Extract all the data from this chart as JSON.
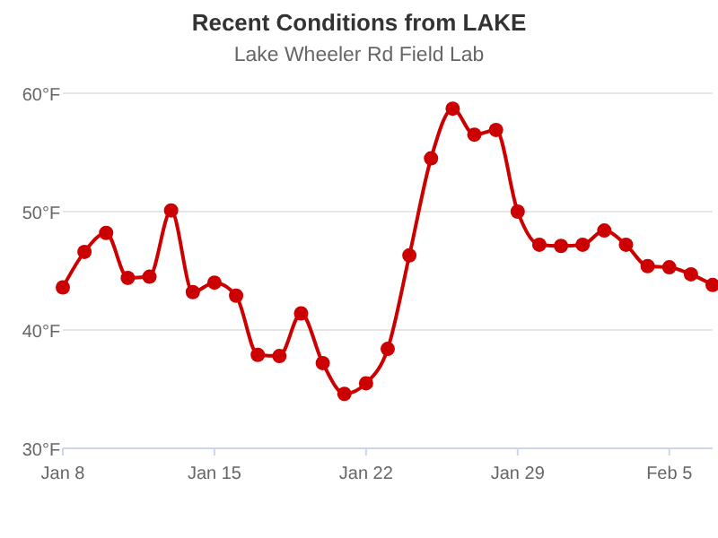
{
  "chart_data": {
    "type": "line",
    "title": "Recent Conditions from LAKE",
    "subtitle": "Lake Wheeler Rd Field Lab",
    "x": [
      "--01-08",
      "--01-09",
      "--01-10",
      "--01-11",
      "--01-12",
      "--01-13",
      "--01-14",
      "--01-15",
      "--01-16",
      "--01-17",
      "--01-18",
      "--01-19",
      "--01-20",
      "--01-21",
      "--01-22",
      "--01-23",
      "--01-24",
      "--01-25",
      "--01-26",
      "--01-27",
      "--01-28",
      "--01-29",
      "--01-30",
      "--01-31",
      "--02-01",
      "--02-02",
      "--02-03",
      "--02-04",
      "--02-05",
      "--02-06",
      "--02-07"
    ],
    "series": [
      {
        "color": "#cc0000",
        "values": [
          43.6,
          46.6,
          48.2,
          44.4,
          44.5,
          50.1,
          43.2,
          44.0,
          42.9,
          37.9,
          37.8,
          41.4,
          37.2,
          34.6,
          35.5,
          38.4,
          46.3,
          54.5,
          58.7,
          56.5,
          56.9,
          50.0,
          47.2,
          47.1,
          47.2,
          48.4,
          47.2,
          45.4,
          45.3,
          44.7,
          43.8
        ]
      }
    ],
    "xlim": [
      "--01-08",
      "--02-07"
    ],
    "xticks": [
      {
        "value": "--01-08",
        "label": "Jan 8"
      },
      {
        "value": "--01-15",
        "label": "Jan 15"
      },
      {
        "value": "--01-22",
        "label": "Jan 22"
      },
      {
        "value": "--01-29",
        "label": "Jan 29"
      },
      {
        "value": "--02-05",
        "label": "Feb 5"
      }
    ],
    "ylim": [
      30,
      60
    ],
    "yticks": [
      {
        "value": 30,
        "label": "30°F"
      },
      {
        "value": 40,
        "label": "40°F"
      },
      {
        "value": 50,
        "label": "50°F"
      },
      {
        "value": 60,
        "label": "60°F"
      }
    ],
    "grid": "y",
    "marker": "circle",
    "line_style": "solid"
  }
}
